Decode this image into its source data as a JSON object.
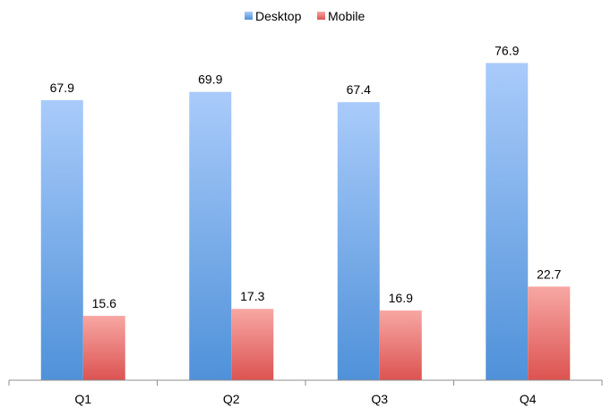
{
  "chart_data": {
    "type": "bar",
    "categories": [
      "Q1",
      "Q2",
      "Q3",
      "Q4"
    ],
    "series": [
      {
        "name": "Desktop",
        "values": [
          67.9,
          69.9,
          67.4,
          76.9
        ],
        "color": "#5b9bd5"
      },
      {
        "name": "Mobile",
        "values": [
          15.6,
          17.3,
          16.9,
          22.7
        ],
        "color": "#e86767"
      }
    ],
    "title": "",
    "xlabel": "",
    "ylabel": "",
    "ylim": [
      0,
      90
    ],
    "grid": false,
    "legend_position": "top-center",
    "data_labels": true
  }
}
